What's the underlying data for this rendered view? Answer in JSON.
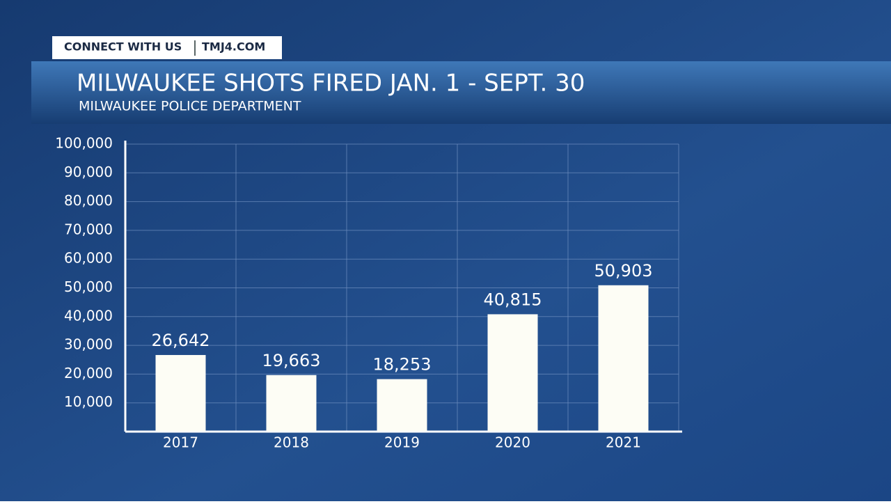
{
  "header": {
    "connect": "CONNECT WITH US",
    "site": "TMJ4.COM"
  },
  "chart_data": {
    "type": "bar",
    "title": "MILWAUKEE SHOTS FIRED JAN. 1 - SEPT. 30",
    "subtitle": "MILWAUKEE POLICE DEPARTMENT",
    "categories": [
      "2017",
      "2018",
      "2019",
      "2020",
      "2021"
    ],
    "values": [
      26642,
      19663,
      18253,
      40815,
      50903
    ],
    "value_labels": [
      "26,642",
      "19,663",
      "18,253",
      "40,815",
      "50,903"
    ],
    "color": "#fdfdf5",
    "ylim": [
      0,
      100000
    ],
    "yticks": [
      {
        "value": 10000,
        "label": "10,000"
      },
      {
        "value": 20000,
        "label": "20,000"
      },
      {
        "value": 30000,
        "label": "30,000"
      },
      {
        "value": 40000,
        "label": "40,000"
      },
      {
        "value": 50000,
        "label": "50,000"
      },
      {
        "value": 60000,
        "label": "60,000"
      },
      {
        "value": 70000,
        "label": "70,000"
      },
      {
        "value": 80000,
        "label": "80,000"
      },
      {
        "value": 90000,
        "label": "90,000"
      },
      {
        "value": 100000,
        "label": "100,000"
      }
    ],
    "grid": true
  }
}
